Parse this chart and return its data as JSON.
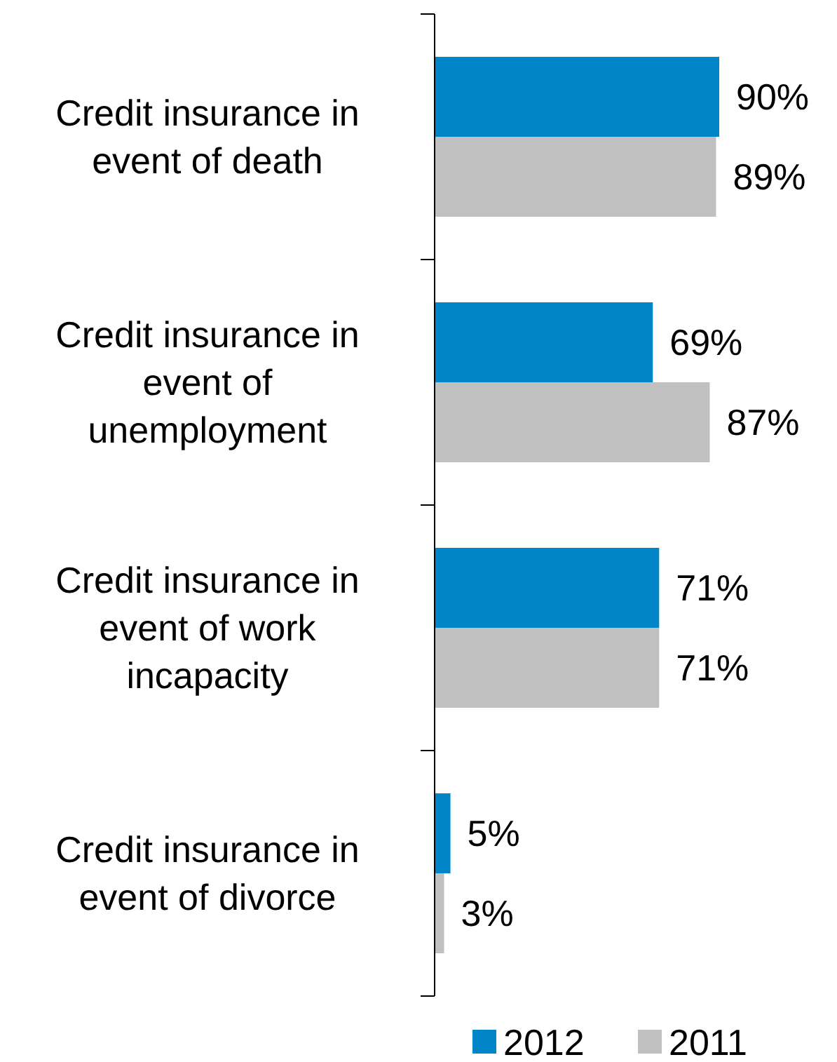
{
  "chart_data": {
    "type": "bar",
    "orientation": "horizontal",
    "categories": [
      "Credit insurance in event of death",
      "Credit insurance in event of unemployment",
      "Credit insurance in event of work incapacity",
      "Credit insurance in event of divorce"
    ],
    "series": [
      {
        "name": "2012",
        "color": "#0085c8",
        "values": [
          90,
          69,
          71,
          5
        ],
        "value_labels": [
          "90%",
          "69%",
          "71%",
          "5%"
        ]
      },
      {
        "name": "2011",
        "color": "#c0c0c0",
        "values": [
          89,
          87,
          71,
          3
        ],
        "value_labels": [
          "89%",
          "87%",
          "71%",
          "3%"
        ]
      }
    ],
    "legend": "bottom"
  }
}
